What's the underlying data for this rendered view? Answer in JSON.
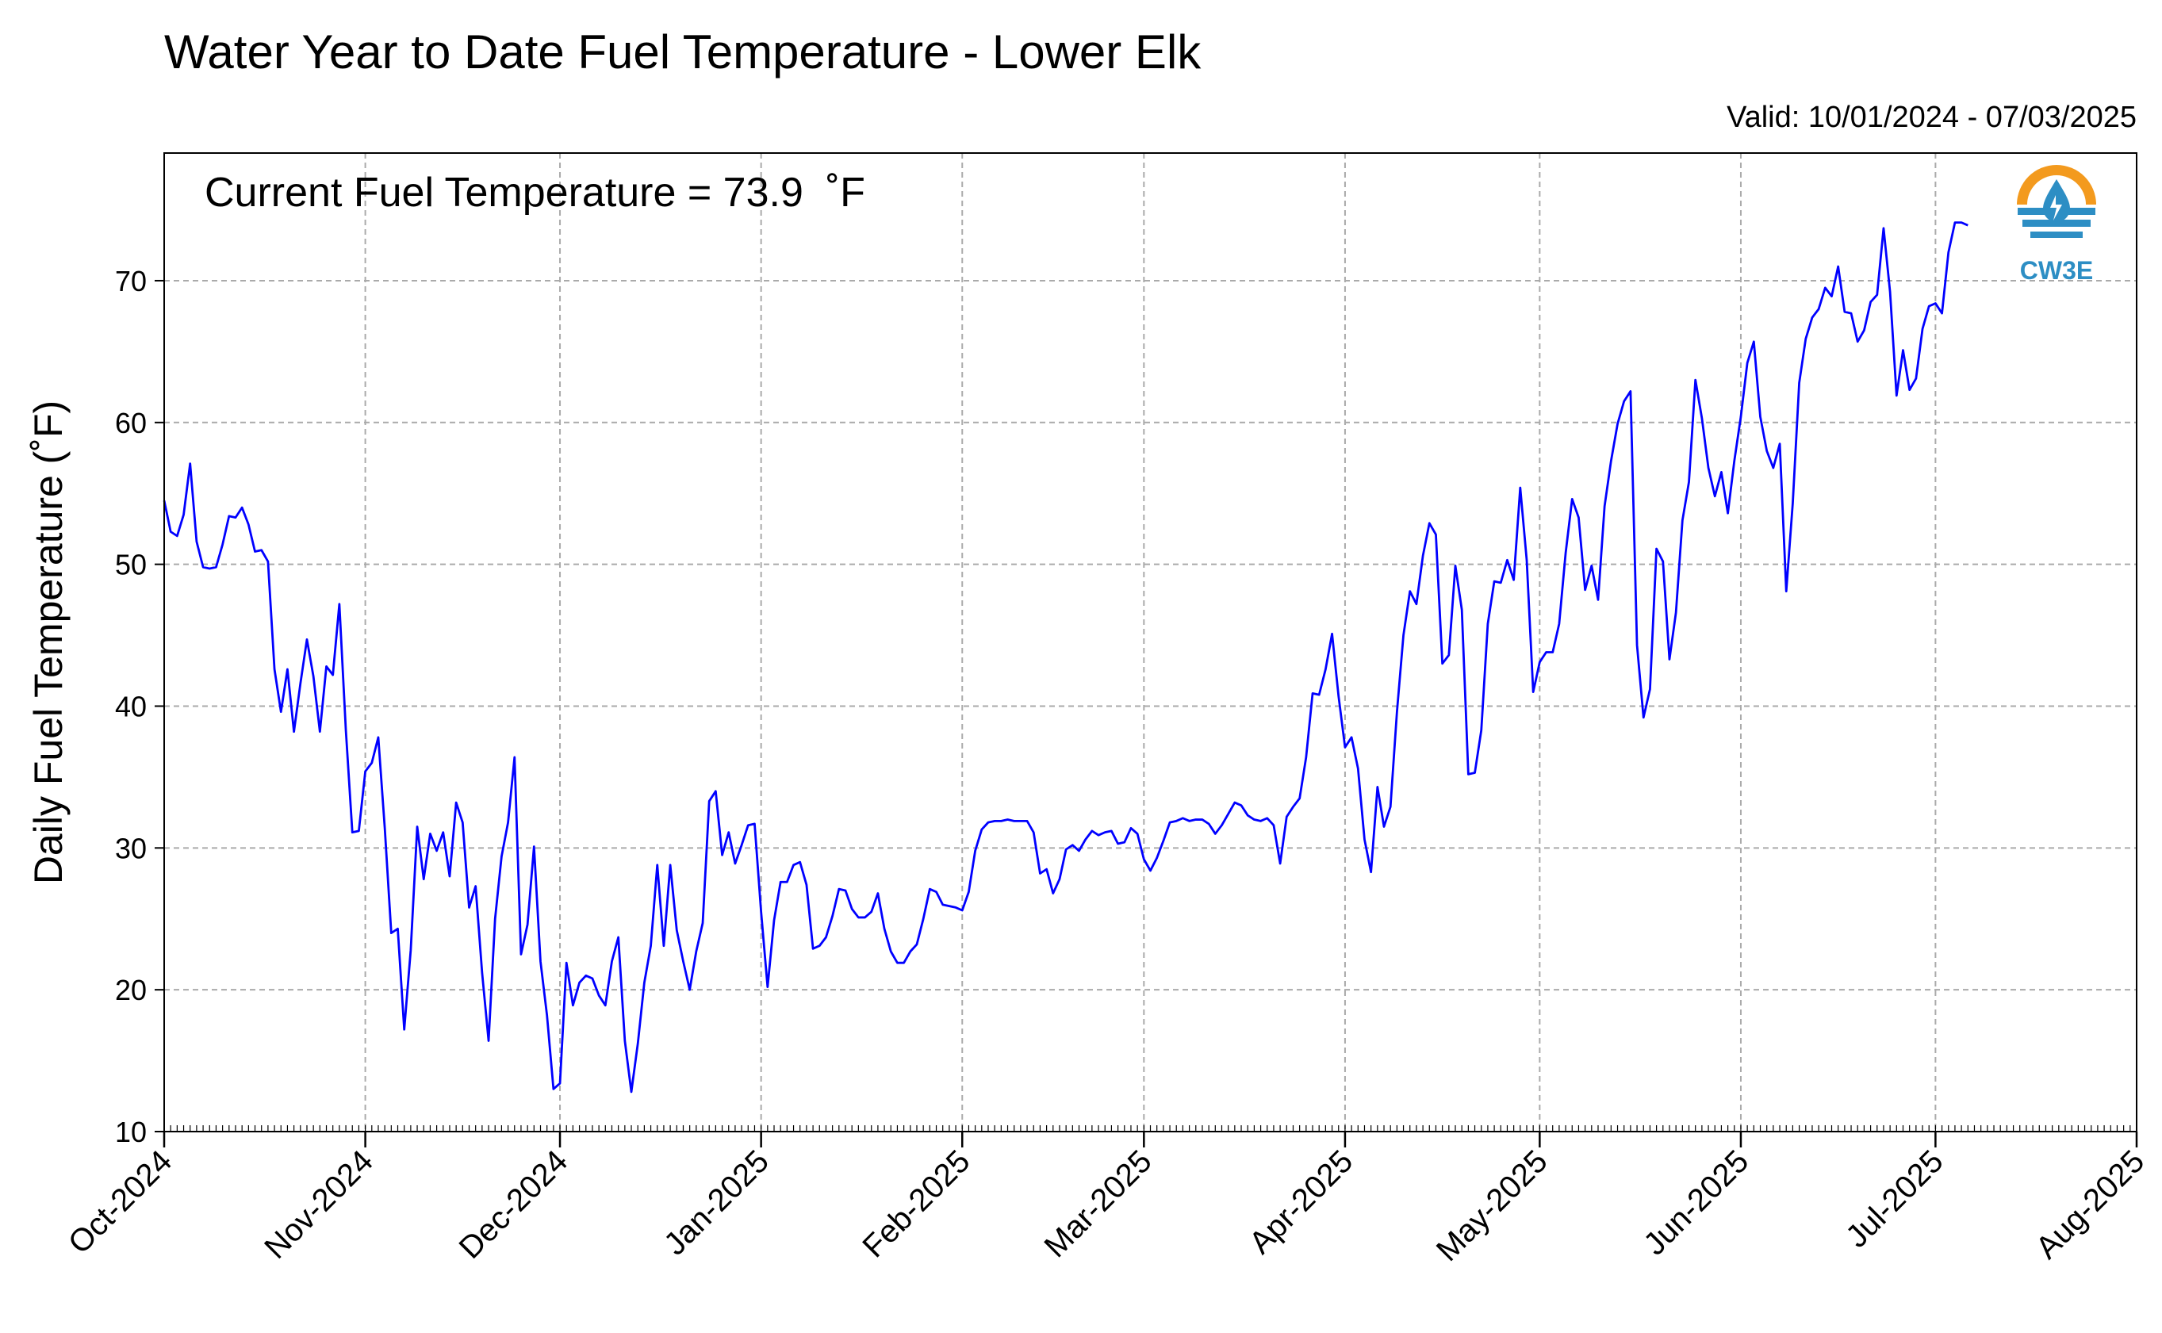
{
  "chart_data": {
    "type": "line",
    "title": "Water Year to Date Fuel Temperature - Lower Elk",
    "valid_text": "Valid: 10/01/2024 - 07/03/2025",
    "annotation": "Current Fuel Temperature = 73.9  ˚F",
    "ylabel": "Daily Fuel Temperature (˚F)",
    "xlabel": "",
    "ylim": [
      10,
      79
    ],
    "yticks": [
      10,
      20,
      30,
      40,
      50,
      60,
      70
    ],
    "xlim": [
      "2024-10-01",
      "2025-08-01"
    ],
    "xticks": [
      "Oct-2024",
      "Nov-2024",
      "Dec-2024",
      "Jan-2025",
      "Feb-2025",
      "Mar-2025",
      "Apr-2025",
      "May-2025",
      "Jun-2025",
      "Jul-2025",
      "Aug-2025"
    ],
    "grid": true,
    "line_color": "#0000ff",
    "series": [
      {
        "x_start": "2024-10-01",
        "values": [
          54.5,
          52.3,
          52.0,
          53.5,
          57.1,
          51.6,
          49.8,
          49.7,
          49.8,
          51.4,
          53.4,
          53.3,
          54.0,
          52.8,
          50.9,
          51.0,
          50.2,
          42.6,
          39.6,
          42.6,
          38.2,
          41.6,
          44.7,
          42.1,
          38.2,
          42.8,
          42.2,
          47.2,
          38.3,
          31.1,
          31.2,
          35.4,
          36.0,
          37.8,
          31.4,
          24.0,
          24.3,
          17.2,
          22.8,
          31.5,
          27.8,
          31.0,
          29.8,
          31.1,
          28.0,
          33.2,
          31.8,
          25.8,
          27.3,
          21.2,
          16.4,
          25.0,
          29.4,
          31.8,
          36.4,
          22.5,
          24.6,
          30.1,
          22.0,
          18.2,
          13.0,
          13.4,
          21.9,
          18.9,
          20.5,
          21.0,
          20.8,
          19.6,
          18.9,
          22.0,
          23.7,
          16.4,
          12.8,
          16.2,
          20.5,
          23.1,
          28.8,
          23.1,
          28.8,
          24.2,
          22.0,
          20.0,
          22.7,
          24.7,
          33.3,
          34.0,
          29.5,
          31.1,
          28.9,
          30.2,
          31.6,
          31.7,
          25.5,
          20.2,
          24.9,
          27.6,
          27.6,
          28.8,
          29.0,
          27.4,
          22.9,
          23.1,
          23.7,
          25.2,
          27.1,
          27.0,
          25.7,
          25.1,
          25.1,
          25.5,
          26.8,
          24.3,
          22.7,
          21.9,
          21.9,
          22.7,
          23.2,
          25.0,
          27.1,
          26.9,
          26.0,
          25.9,
          25.8,
          25.6,
          26.9,
          29.8,
          31.3,
          31.8,
          31.9,
          31.9,
          32.0,
          31.9,
          31.9,
          31.9,
          31.1,
          28.2,
          28.5,
          26.8,
          27.8,
          29.9,
          30.2,
          29.8,
          30.6,
          31.2,
          30.9,
          31.1,
          31.2,
          30.3,
          30.4,
          31.4,
          31.0,
          29.2,
          28.4,
          29.3,
          30.5,
          31.8,
          31.9,
          32.1,
          31.9,
          32.0,
          32.0,
          31.7,
          31.0,
          31.6,
          32.4,
          33.2,
          33.0,
          32.3,
          32.0,
          31.9,
          32.1,
          31.6,
          28.9,
          32.2,
          32.9,
          33.5,
          36.4,
          40.9,
          40.8,
          42.6,
          45.1,
          40.7,
          37.1,
          37.8,
          35.6,
          30.6,
          28.3,
          34.3,
          31.5,
          32.9,
          39.6,
          45.0,
          48.1,
          47.2,
          50.6,
          52.9,
          52.1,
          43.0,
          43.6,
          49.9,
          46.8,
          35.2,
          35.3,
          38.3,
          45.8,
          48.8,
          48.7,
          50.3,
          48.9,
          55.4,
          50.3,
          41.0,
          43.1,
          43.8,
          43.8,
          45.8,
          50.8,
          54.6,
          53.3,
          48.2,
          49.9,
          47.5,
          54.1,
          57.3,
          59.9,
          61.5,
          62.2,
          44.3,
          39.2,
          41.2,
          51.1,
          50.2,
          43.3,
          46.6,
          53.1,
          55.8,
          63.0,
          60.3,
          56.8,
          54.8,
          56.5,
          53.6,
          57.3,
          60.4,
          64.2,
          65.7,
          60.4,
          58.0,
          56.8,
          58.5,
          48.1,
          54.3,
          62.8,
          65.9,
          67.4,
          68.0,
          69.5,
          68.9,
          71.0,
          67.8,
          67.7,
          65.7,
          66.5,
          68.5,
          69.0,
          73.7,
          69.2,
          61.9,
          65.1,
          62.3,
          63.1,
          66.6,
          68.2,
          68.4,
          67.7,
          72.0,
          74.1,
          74.1,
          73.9
        ]
      }
    ]
  },
  "logo": {
    "text": "CW3E",
    "icon": "water-drop-sun-logo-icon",
    "colors": {
      "orange": "#f39a1e",
      "blue": "#2d8ec4"
    }
  }
}
